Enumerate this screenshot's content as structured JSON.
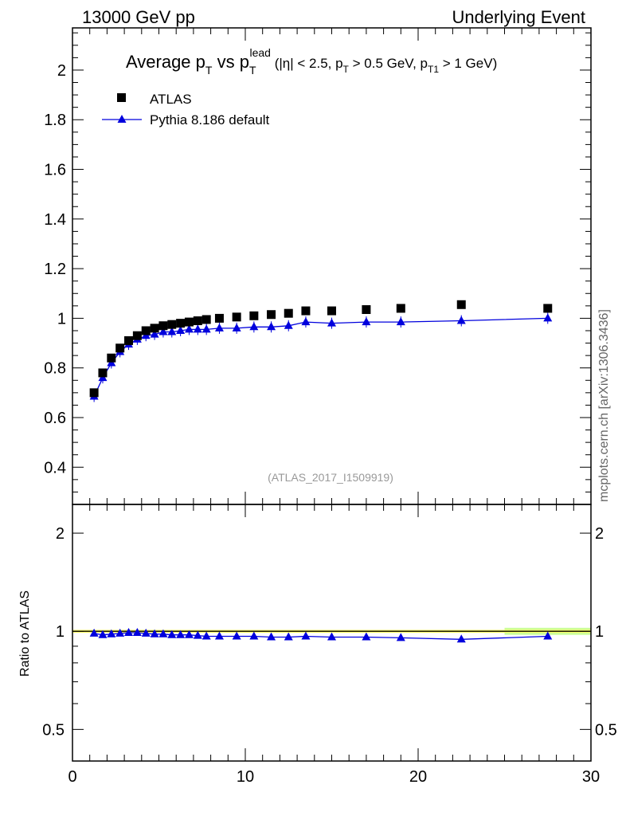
{
  "header": {
    "left": "13000 GeV pp",
    "right": "Underlying Event"
  },
  "title": {
    "main_a": "Average p",
    "main_a_sub": "T",
    "main_b": " vs p",
    "main_b_sub": "T",
    "main_b_sup": "lead",
    "cuts_1": " (|η| < 2.5, p",
    "cuts_1_sub": "T",
    "cuts_2": " > 0.5 GeV, p",
    "cuts_2_sub": "T1",
    "cuts_3": " > 1 GeV)"
  },
  "watermark": "(ATLAS_2017_I1509919)",
  "side_label": "mcplots.cern.ch [arXiv:1306.3436]",
  "ratio_ylabel": "Ratio to ATLAS",
  "colors": {
    "mc": "#0000dd",
    "band_inner": "#ffff66",
    "band_outer": "#ccff99",
    "data": "#000000"
  },
  "chart_data": [
    {
      "type": "scatter",
      "panel": "main",
      "xlim": [
        0,
        30
      ],
      "ylim": [
        0.25,
        2.17
      ],
      "yticks": [
        0.4,
        0.6,
        0.8,
        1,
        1.2,
        1.4,
        1.6,
        1.8,
        2
      ],
      "ytick_labels": [
        "0.4",
        "0.6",
        "0.8",
        "1",
        "1.2",
        "1.4",
        "1.6",
        "1.8",
        "2"
      ],
      "legend_placement": "top-left",
      "series": [
        {
          "name": "ATLAS",
          "marker": "square",
          "x": [
            1.25,
            1.75,
            2.25,
            2.75,
            3.25,
            3.75,
            4.25,
            4.75,
            5.25,
            5.75,
            6.25,
            6.75,
            7.25,
            7.75,
            8.5,
            9.5,
            10.5,
            11.5,
            12.5,
            13.5,
            15,
            17,
            19,
            22.5,
            27.5
          ],
          "y": [
            0.7,
            0.78,
            0.84,
            0.88,
            0.91,
            0.93,
            0.95,
            0.96,
            0.97,
            0.975,
            0.98,
            0.985,
            0.99,
            0.995,
            1.0,
            1.005,
            1.01,
            1.015,
            1.02,
            1.03,
            1.03,
            1.035,
            1.04,
            1.055,
            1.04
          ]
        },
        {
          "name": "Pythia 8.186 default",
          "marker": "triangle",
          "x": [
            1.25,
            1.75,
            2.25,
            2.75,
            3.25,
            3.75,
            4.25,
            4.75,
            5.25,
            5.75,
            6.25,
            6.75,
            7.25,
            7.75,
            8.5,
            9.5,
            10.5,
            11.5,
            12.5,
            13.5,
            15,
            17,
            19,
            22.5,
            27.5
          ],
          "y": [
            0.685,
            0.76,
            0.82,
            0.865,
            0.895,
            0.915,
            0.93,
            0.935,
            0.945,
            0.945,
            0.95,
            0.955,
            0.955,
            0.955,
            0.96,
            0.96,
            0.965,
            0.965,
            0.97,
            0.985,
            0.98,
            0.985,
            0.985,
            0.99,
            1.0
          ]
        }
      ]
    },
    {
      "type": "line",
      "panel": "ratio",
      "xlim": [
        0,
        30
      ],
      "ylim": [
        0.4,
        2.45
      ],
      "yscale": "log",
      "xticks": [
        0,
        10,
        20,
        30
      ],
      "xtick_labels": [
        "0",
        "10",
        "20",
        "30"
      ],
      "yticks": [
        0.5,
        1,
        2
      ],
      "ytick_labels": [
        "0.5",
        "1",
        "2"
      ],
      "ylabel": "Ratio to ATLAS",
      "series": [
        {
          "name": "Pythia 8.186 default",
          "x": [
            1.25,
            1.75,
            2.25,
            2.75,
            3.25,
            3.75,
            4.25,
            4.75,
            5.25,
            5.75,
            6.25,
            6.75,
            7.25,
            7.75,
            8.5,
            9.5,
            10.5,
            11.5,
            12.5,
            13.5,
            15,
            17,
            19,
            22.5,
            27.5
          ],
          "y": [
            0.985,
            0.975,
            0.98,
            0.985,
            0.99,
            0.99,
            0.985,
            0.98,
            0.98,
            0.975,
            0.975,
            0.975,
            0.97,
            0.965,
            0.965,
            0.965,
            0.965,
            0.96,
            0.96,
            0.965,
            0.96,
            0.96,
            0.955,
            0.945,
            0.965
          ]
        }
      ],
      "reference_line": 1
    }
  ]
}
